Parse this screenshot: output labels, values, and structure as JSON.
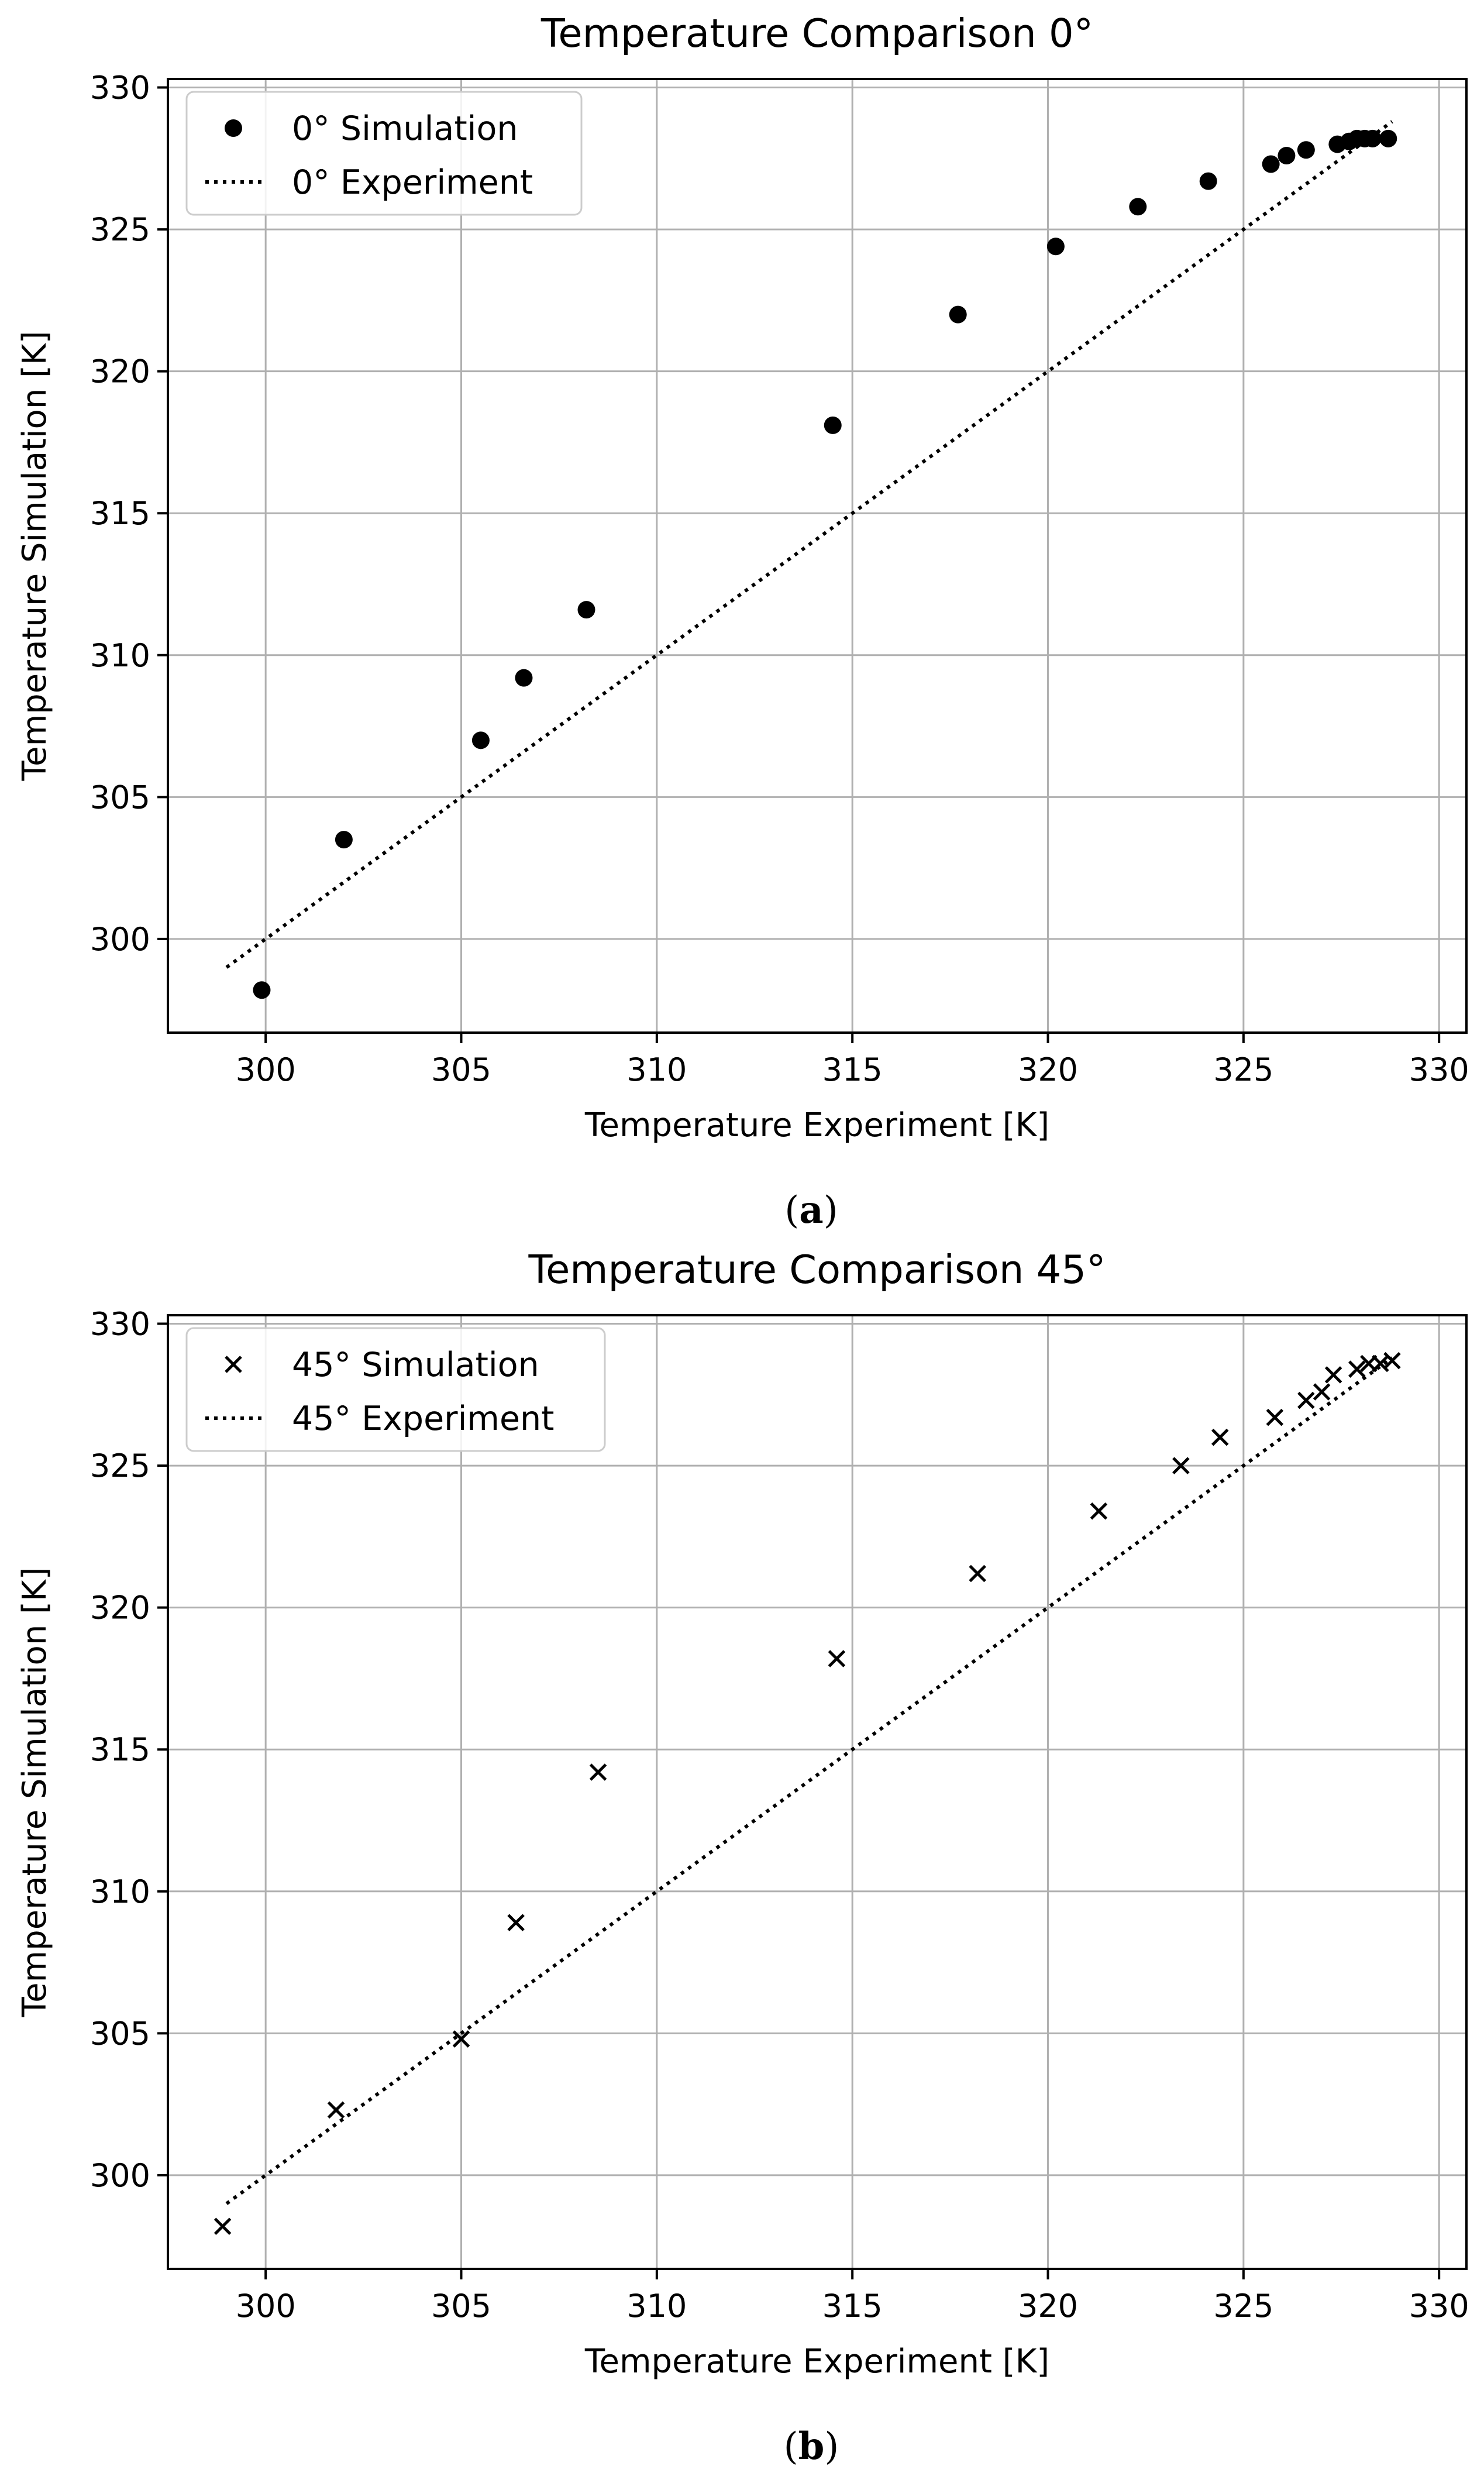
{
  "chart_data": [
    {
      "type": "scatter",
      "title": "Temperature Comparison 0°",
      "xlabel": "Temperature Experiment [K]",
      "ylabel": "Temperature Simulation [K]",
      "xlim": [
        297.5,
        330.7
      ],
      "ylim": [
        296.7,
        330.3
      ],
      "xticks": [
        300,
        305,
        310,
        315,
        320,
        325,
        330
      ],
      "yticks": [
        300,
        305,
        310,
        315,
        320,
        325,
        330
      ],
      "grid": true,
      "legend_position": "top-left",
      "caption_label": "a",
      "series": [
        {
          "name": "0° Simulation",
          "marker": "circle",
          "color": "#000000",
          "points": [
            [
              299.9,
              298.2
            ],
            [
              302.0,
              303.5
            ],
            [
              305.5,
              307.0
            ],
            [
              306.6,
              309.2
            ],
            [
              308.2,
              311.6
            ],
            [
              314.5,
              318.1
            ],
            [
              317.7,
              322.0
            ],
            [
              320.2,
              324.4
            ],
            [
              322.3,
              325.8
            ],
            [
              324.1,
              326.7
            ],
            [
              325.7,
              327.3
            ],
            [
              326.1,
              327.6
            ],
            [
              326.6,
              327.8
            ],
            [
              327.4,
              328.0
            ],
            [
              327.7,
              328.1
            ],
            [
              327.9,
              328.2
            ],
            [
              328.1,
              328.2
            ],
            [
              328.3,
              328.2
            ],
            [
              328.7,
              328.2
            ]
          ]
        },
        {
          "name": "0° Experiment",
          "line": "dotted",
          "color": "#000000",
          "points": [
            [
              299.0,
              299.0
            ],
            [
              328.8,
              328.8
            ]
          ]
        }
      ]
    },
    {
      "type": "scatter",
      "title": "Temperature Comparison 45°",
      "xlabel": "Temperature Experiment [K]",
      "ylabel": "Temperature Simulation [K]",
      "xlim": [
        297.5,
        330.7
      ],
      "ylim": [
        296.7,
        330.3
      ],
      "xticks": [
        300,
        305,
        310,
        315,
        320,
        325,
        330
      ],
      "yticks": [
        300,
        305,
        310,
        315,
        320,
        325,
        330
      ],
      "grid": true,
      "legend_position": "top-left",
      "caption_label": "b",
      "series": [
        {
          "name": "45° Simulation",
          "marker": "x",
          "color": "#000000",
          "points": [
            [
              298.9,
              298.2
            ],
            [
              301.8,
              302.3
            ],
            [
              305.0,
              304.8
            ],
            [
              306.4,
              308.9
            ],
            [
              308.5,
              314.2
            ],
            [
              314.6,
              318.2
            ],
            [
              318.2,
              321.2
            ],
            [
              321.3,
              323.4
            ],
            [
              323.4,
              325.0
            ],
            [
              324.4,
              326.0
            ],
            [
              325.8,
              326.7
            ],
            [
              326.6,
              327.3
            ],
            [
              327.0,
              327.6
            ],
            [
              327.3,
              328.2
            ],
            [
              327.9,
              328.4
            ],
            [
              328.2,
              328.6
            ],
            [
              328.5,
              328.6
            ],
            [
              328.8,
              328.7
            ]
          ]
        },
        {
          "name": "45° Experiment",
          "line": "dotted",
          "color": "#000000",
          "points": [
            [
              299.0,
              299.0
            ],
            [
              328.8,
              328.8
            ]
          ]
        }
      ]
    }
  ]
}
